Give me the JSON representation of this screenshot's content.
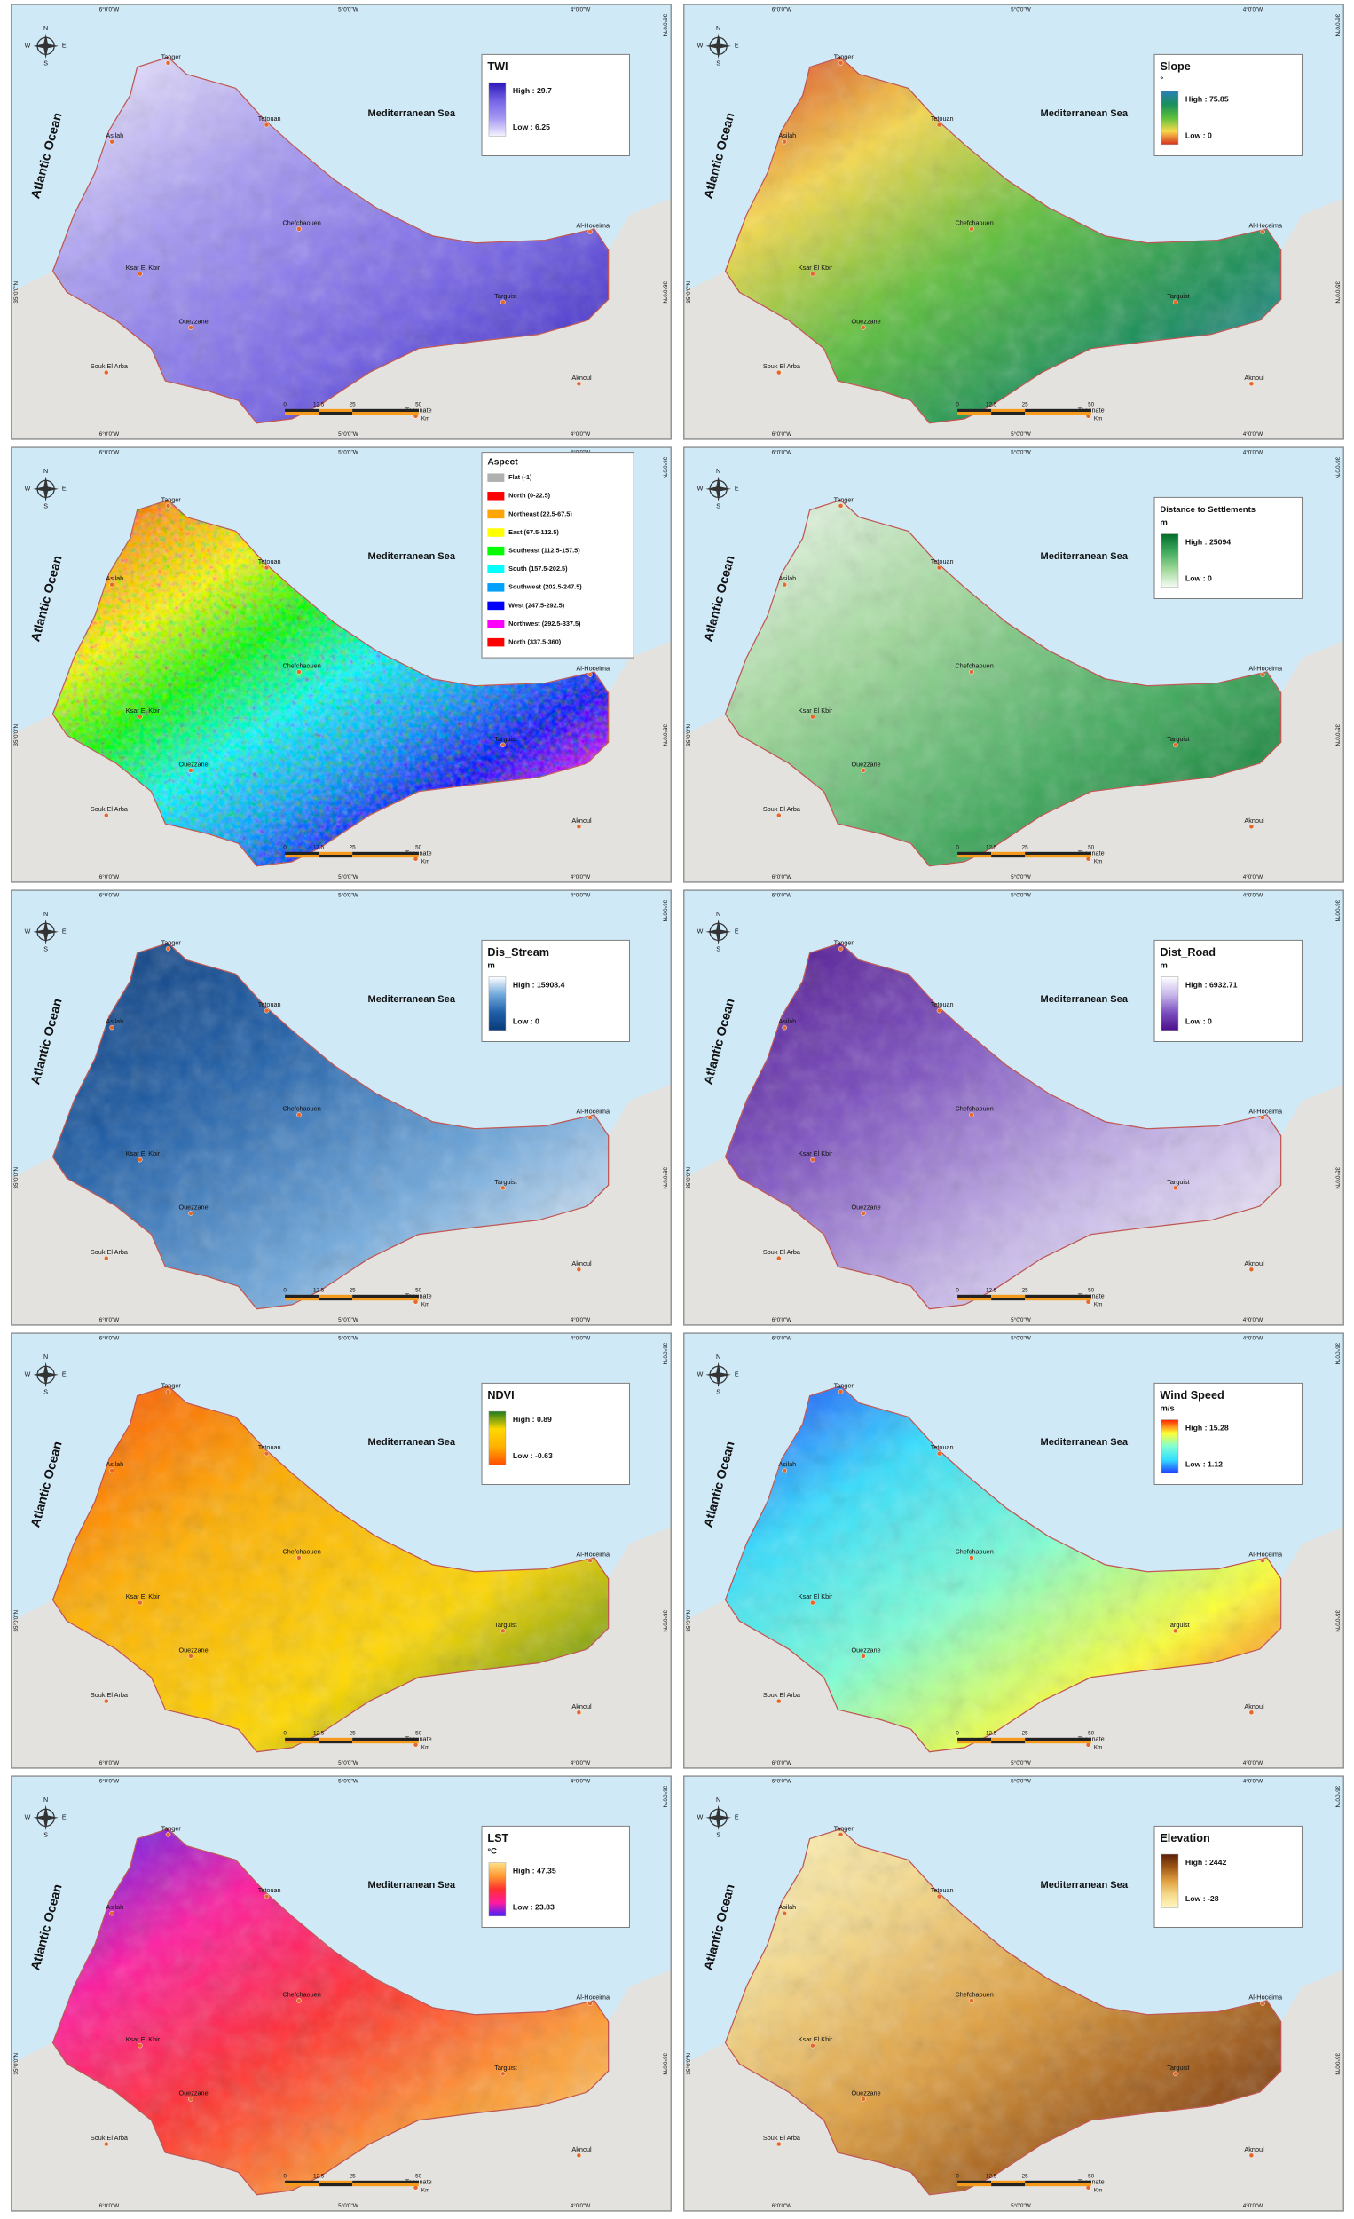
{
  "map_labels": {
    "sea": "Mediterranean Sea",
    "ocean": "Atlantic Ocean",
    "places": [
      "Tanger",
      "Tetouan",
      "Asilah",
      "Chefchaouen",
      "Al-Hoceima",
      "Ksar El Kbir",
      "Ouezzane",
      "Targuist",
      "Souk El Arba",
      "Aknoul",
      "Taounate"
    ],
    "longitudes": [
      "6°0'0\"W",
      "5°0'0\"W",
      "4°0'0\"W"
    ],
    "latitude": "35°0'0\"N",
    "latitude_top": "36°0'0\"N",
    "scale": [
      "0",
      "12.5",
      "25",
      "50"
    ],
    "scale_unit": "Km",
    "compass": [
      "N",
      "E",
      "S",
      "W"
    ]
  },
  "panels": [
    {
      "title": "TWI",
      "high": "High : 29.7",
      "low": "Low : 6.25",
      "colors": [
        "#f4f1ff",
        "#a598f2",
        "#7563e6",
        "#2b17b8"
      ]
    },
    {
      "title": "Slope",
      "unit": "°",
      "high": "High : 75.85",
      "low": "Low : 0",
      "colors": [
        "#d7301f",
        "#f7d94c",
        "#5cbf3c",
        "#1a8f5a",
        "#2c7fb8"
      ]
    },
    {
      "title": "Aspect",
      "classes": [
        {
          "label": "Flat (-1)",
          "color": "#b0b0b0"
        },
        {
          "label": "North (0-22.5)",
          "color": "#ff0000"
        },
        {
          "label": "Northeast (22.5-67.5)",
          "color": "#ffa500"
        },
        {
          "label": "East (67.5-112.5)",
          "color": "#ffff00"
        },
        {
          "label": "Southeast (112.5-157.5)",
          "color": "#00ff00"
        },
        {
          "label": "South (157.5-202.5)",
          "color": "#00ffff"
        },
        {
          "label": "Southwest (202.5-247.5)",
          "color": "#00a0ff"
        },
        {
          "label": "West (247.5-292.5)",
          "color": "#0000ff"
        },
        {
          "label": "Northwest (292.5-337.5)",
          "color": "#ff00ff"
        },
        {
          "label": "North (337.5-360)",
          "color": "#ff0000"
        }
      ]
    },
    {
      "title": "Distance to Settlements",
      "unit": "m",
      "high": "High : 25094",
      "low": "Low : 0",
      "colors": [
        "#f7fcf5",
        "#a1d99b",
        "#41ab5d",
        "#006d2c"
      ]
    },
    {
      "title": "Dis_Stream",
      "unit": "m",
      "high": "High : 15908.4",
      "low": "Low : 0",
      "colors": [
        "#0a3a7a",
        "#1f5fa8",
        "#6fa8dc",
        "#ffffff"
      ]
    },
    {
      "title": "Dist_Road",
      "unit": "m",
      "high": "High : 6932.71",
      "low": "Low : 0",
      "colors": [
        "#4b0f8a",
        "#7c4fc0",
        "#c8b8ea",
        "#ffffff"
      ]
    },
    {
      "title": "NDVI",
      "high": "High : 0.89",
      "low": "Low : -0.63",
      "colors": [
        "#ff4d00",
        "#ffb000",
        "#ffd800",
        "#1f7a1f"
      ]
    },
    {
      "title": "Wind Speed",
      "unit": "m/s",
      "high": "High : 15.28",
      "low": "Low : 1.12",
      "colors": [
        "#1e3cff",
        "#33ddff",
        "#7fffd4",
        "#ffff33",
        "#ff2200"
      ]
    },
    {
      "title": "LST",
      "unit": "°C",
      "high": "High : 47.35",
      "low": "Low : 23.83",
      "colors": [
        "#4020ff",
        "#ff1aa0",
        "#ff3030",
        "#ff9a30",
        "#ffe08a"
      ]
    },
    {
      "title": "Elevation",
      "high": "High : 2442",
      "low": "Low : -28",
      "colors": [
        "#fff7c0",
        "#f5d98a",
        "#e0a040",
        "#a05a18",
        "#5a1e05"
      ]
    }
  ]
}
